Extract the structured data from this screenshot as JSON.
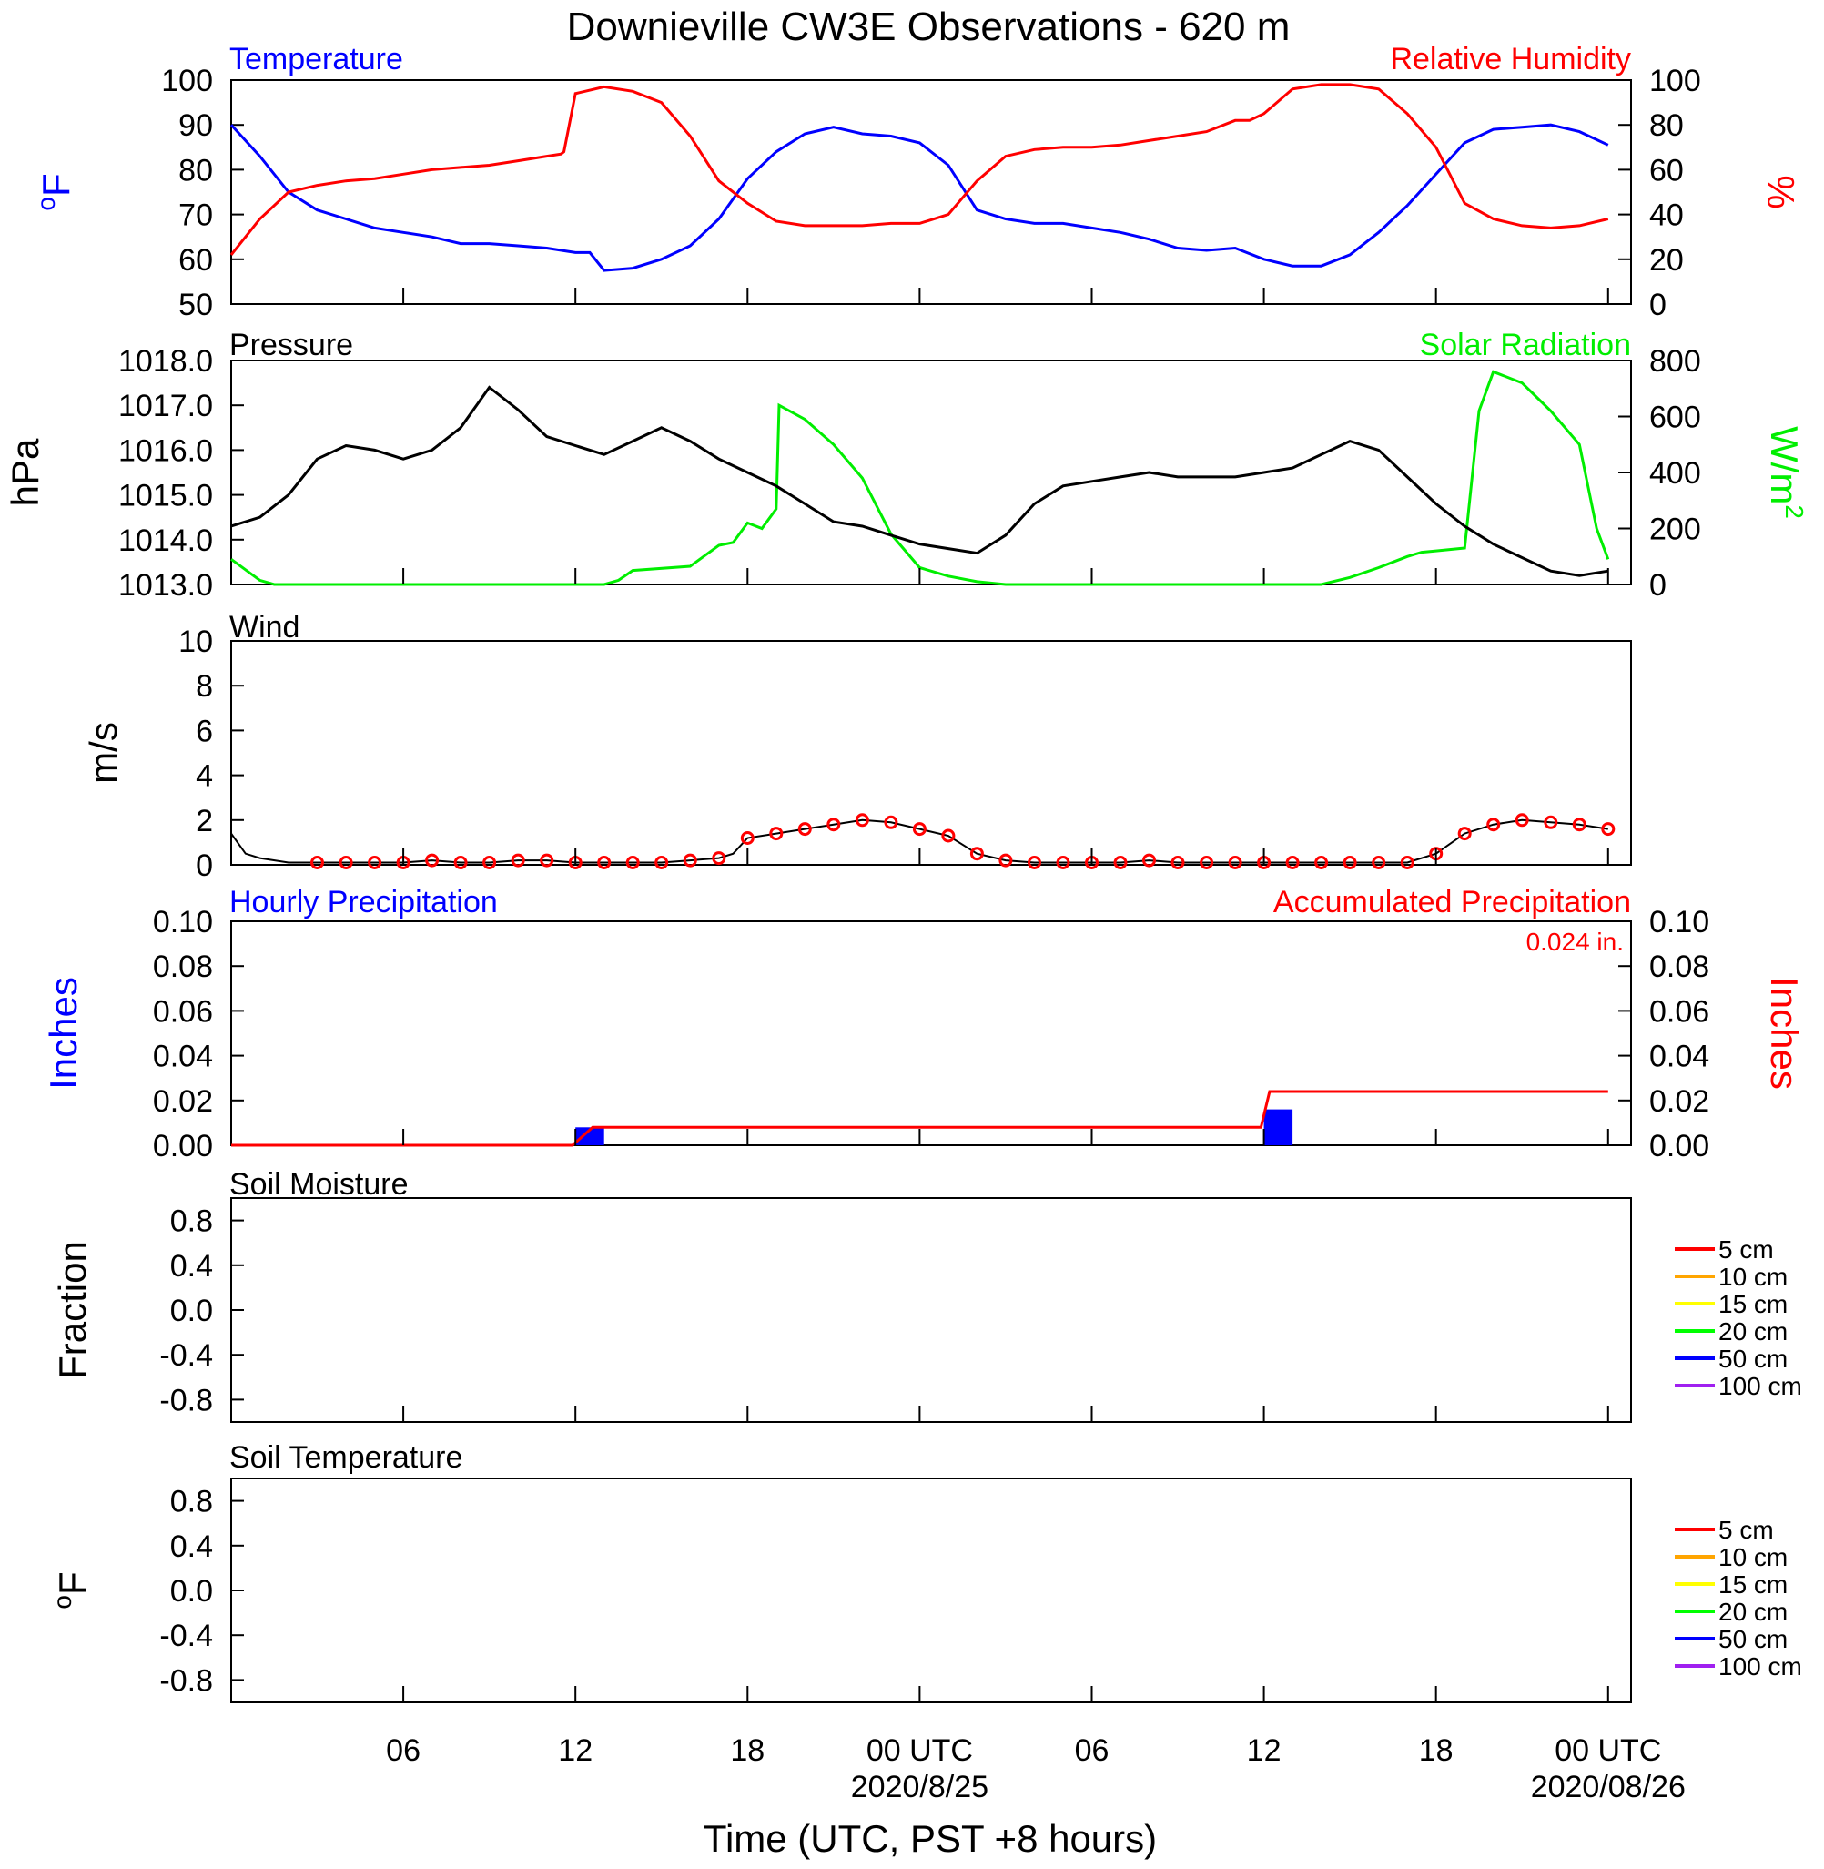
{
  "title": "Downieville CW3E Observations - 620 m",
  "x_axis": {
    "label": "Time (UTC, PST +8 hours)",
    "ticks": [
      {
        "hour": 6,
        "label": "06",
        "sub": ""
      },
      {
        "hour": 12,
        "label": "12",
        "sub": ""
      },
      {
        "hour": 18,
        "label": "18",
        "sub": ""
      },
      {
        "hour": 24,
        "label": "00 UTC",
        "sub": "2020/8/25"
      },
      {
        "hour": 30,
        "label": "06",
        "sub": ""
      },
      {
        "hour": 36,
        "label": "12",
        "sub": ""
      },
      {
        "hour": 42,
        "label": "18",
        "sub": ""
      },
      {
        "hour": 48,
        "label": "00 UTC",
        "sub": "2020/08/26"
      }
    ]
  },
  "panels": {
    "temp_rh": {
      "left_title": "Temperature",
      "right_title": "Relative Humidity",
      "left_unit": "oF",
      "right_unit": "%",
      "left_ticks": [
        "50",
        "60",
        "70",
        "80",
        "90",
        "100"
      ],
      "right_ticks": [
        "0",
        "20",
        "40",
        "60",
        "80",
        "100"
      ]
    },
    "pressure_solar": {
      "left_title": "Pressure",
      "right_title": "Solar Radiation",
      "left_unit": "hPa",
      "right_unit": "W/m2",
      "left_ticks": [
        "1013.0",
        "1014.0",
        "1015.0",
        "1016.0",
        "1017.0",
        "1018.0"
      ],
      "right_ticks": [
        "0",
        "200",
        "400",
        "600",
        "800"
      ]
    },
    "wind": {
      "left_title": "Wind",
      "left_unit": "m/s",
      "left_ticks": [
        "0",
        "2",
        "4",
        "6",
        "8",
        "10"
      ]
    },
    "precip": {
      "left_title": "Hourly Precipitation",
      "right_title": "Accumulated Precipitation",
      "total_label": "0.024 in.",
      "left_unit": "Inches",
      "right_unit": "Inches",
      "left_ticks": [
        "0.00",
        "0.02",
        "0.04",
        "0.06",
        "0.08",
        "0.10"
      ],
      "right_ticks": [
        "0.00",
        "0.02",
        "0.04",
        "0.06",
        "0.08",
        "0.10"
      ]
    },
    "soil_moisture": {
      "left_title": "Soil Moisture",
      "left_unit": "Fraction",
      "left_ticks": [
        "-0.8",
        "-0.4",
        "0.0",
        "0.4",
        "0.8"
      ],
      "legend": [
        "5 cm",
        "10 cm",
        "15 cm",
        "20 cm",
        "50 cm",
        "100 cm"
      ]
    },
    "soil_temp": {
      "left_title": "Soil Temperature",
      "left_unit": "oF",
      "left_ticks": [
        "-0.8",
        "-0.4",
        "0.0",
        "0.4",
        "0.8"
      ],
      "legend": [
        "5 cm",
        "10 cm",
        "15 cm",
        "20 cm",
        "50 cm",
        "100 cm"
      ]
    }
  },
  "colors": {
    "temperature": "#0000ff",
    "humidity": "#ff0000",
    "pressure": "#000000",
    "solar": "#00ee00",
    "wind": "#000000",
    "wind_marker": "#ff0000",
    "hourly_precip": "#0000ff",
    "accum_precip": "#ff0000",
    "legend_lines": [
      "#ff0000",
      "#ffa500",
      "#ffff00",
      "#00ff00",
      "#0000ff",
      "#a020f0"
    ]
  },
  "chart_data": [
    {
      "type": "line",
      "title": "Temperature",
      "ylabel": "oF",
      "ylim": [
        50,
        100
      ],
      "x_unit": "hours since 2020-08-24 00 UTC",
      "x": [
        0,
        1,
        2,
        3,
        4,
        5,
        6,
        7,
        8,
        9,
        10,
        11,
        12,
        12.5,
        13,
        14,
        15,
        16,
        17,
        18,
        19,
        20,
        21,
        22,
        23,
        24,
        25,
        26,
        27,
        28,
        29,
        30,
        31,
        32,
        33,
        34,
        35,
        36,
        37,
        38,
        39,
        40,
        41,
        42,
        43,
        44,
        45,
        46,
        47,
        48
      ],
      "values": [
        90,
        83,
        75,
        71,
        69,
        67,
        66,
        65,
        63.5,
        63.5,
        63,
        62.5,
        61.5,
        61.5,
        57.5,
        58,
        60,
        63,
        69,
        78,
        84,
        88,
        89.5,
        88,
        87.5,
        86,
        81,
        71,
        69,
        68,
        68,
        67,
        66,
        64.5,
        62.5,
        62,
        62.5,
        60,
        58.5,
        58.5,
        61,
        66,
        72,
        79,
        86,
        89,
        89.5,
        90,
        88.5,
        85.5
      ]
    },
    {
      "type": "line",
      "title": "Relative Humidity",
      "ylabel": "%",
      "ylim": [
        0,
        100
      ],
      "x": [
        0,
        1,
        2,
        3,
        4,
        5,
        6,
        7,
        8,
        9,
        10,
        11,
        11.5,
        11.6,
        12,
        13,
        14,
        15,
        16,
        17,
        18,
        19,
        20,
        21,
        22,
        23,
        24,
        25,
        26,
        27,
        28,
        29,
        30,
        31,
        32,
        33,
        34,
        35,
        35.5,
        36,
        37,
        38,
        39,
        40,
        41,
        42,
        43,
        44,
        45,
        46,
        47,
        48
      ],
      "values": [
        22,
        38,
        50,
        53,
        55,
        56,
        58,
        60,
        61,
        62,
        64,
        66,
        67,
        68,
        94,
        97,
        95,
        90,
        75,
        55,
        45,
        37,
        35,
        35,
        35,
        36,
        36,
        40,
        55,
        66,
        69,
        70,
        70,
        71,
        73,
        75,
        77,
        82,
        82,
        85,
        96,
        98,
        98,
        96,
        85,
        70,
        45,
        38,
        35,
        34,
        35,
        38
      ]
    },
    {
      "type": "line",
      "title": "Pressure",
      "ylabel": "hPa",
      "ylim": [
        1013.0,
        1018.0
      ],
      "x": [
        0,
        1,
        2,
        3,
        4,
        5,
        6,
        7,
        8,
        9,
        10,
        11,
        12,
        13,
        14,
        15,
        16,
        17,
        18,
        19,
        20,
        21,
        22,
        23,
        24,
        25,
        26,
        27,
        28,
        29,
        30,
        31,
        32,
        33,
        34,
        35,
        36,
        37,
        38,
        39,
        40,
        41,
        42,
        43,
        44,
        45,
        46,
        47,
        48
      ],
      "values": [
        1014.3,
        1014.5,
        1015.0,
        1015.8,
        1016.1,
        1016.0,
        1015.8,
        1016.0,
        1016.5,
        1017.4,
        1016.9,
        1016.3,
        1016.1,
        1015.9,
        1016.2,
        1016.5,
        1016.2,
        1015.8,
        1015.5,
        1015.2,
        1014.8,
        1014.4,
        1014.3,
        1014.1,
        1013.9,
        1013.8,
        1013.7,
        1014.1,
        1014.8,
        1015.2,
        1015.3,
        1015.4,
        1015.5,
        1015.4,
        1015.4,
        1015.4,
        1015.5,
        1015.6,
        1015.9,
        1016.2,
        1016.0,
        1015.4,
        1014.8,
        1014.3,
        1013.9,
        1013.6,
        1013.3,
        1013.2,
        1013.3
      ]
    },
    {
      "type": "line",
      "title": "Solar Radiation",
      "ylabel": "W/m2",
      "ylim": [
        0,
        800
      ],
      "x": [
        0,
        1,
        1.5,
        13,
        13.5,
        14,
        16,
        17,
        17.5,
        18,
        18.5,
        19,
        19.1,
        20,
        21,
        22,
        23,
        24,
        25,
        26,
        27,
        38,
        39,
        40,
        41,
        41.5,
        42,
        43,
        43.5,
        44,
        45,
        45.5,
        46,
        47,
        47.6,
        48
      ],
      "values": [
        90,
        15,
        0,
        0,
        15,
        50,
        65,
        140,
        150,
        220,
        200,
        270,
        640,
        590,
        500,
        380,
        180,
        60,
        30,
        10,
        0,
        0,
        25,
        60,
        100,
        115,
        120,
        130,
        620,
        760,
        720,
        670,
        620,
        500,
        200,
        90
      ]
    },
    {
      "type": "line",
      "title": "Wind",
      "ylabel": "m/s",
      "ylim": [
        0,
        10
      ],
      "x": [
        0,
        0.5,
        1,
        2,
        3,
        4,
        5,
        6,
        7,
        8,
        9,
        10,
        11,
        12,
        13,
        14,
        15,
        16,
        17,
        17.5,
        18,
        19,
        20,
        21,
        22,
        23,
        24,
        25,
        26,
        27,
        28,
        29,
        30,
        31,
        32,
        33,
        34,
        35,
        36,
        37,
        38,
        39,
        40,
        41,
        42,
        43,
        44,
        45,
        46,
        47,
        48
      ],
      "values": [
        1.4,
        0.5,
        0.3,
        0.1,
        0.1,
        0.1,
        0.1,
        0.1,
        0.2,
        0.1,
        0.1,
        0.2,
        0.2,
        0.1,
        0.1,
        0.1,
        0.1,
        0.2,
        0.3,
        0.5,
        1.2,
        1.4,
        1.6,
        1.8,
        2.0,
        1.9,
        1.6,
        1.3,
        0.5,
        0.2,
        0.1,
        0.1,
        0.1,
        0.1,
        0.2,
        0.1,
        0.1,
        0.1,
        0.1,
        0.1,
        0.1,
        0.1,
        0.1,
        0.1,
        0.5,
        1.4,
        1.8,
        2.0,
        1.9,
        1.8,
        1.6
      ]
    },
    {
      "type": "bar",
      "title": "Hourly Precipitation",
      "ylabel": "Inches",
      "ylim": [
        0,
        0.1
      ],
      "x": [
        12,
        36
      ],
      "values": [
        0.008,
        0.016
      ]
    },
    {
      "type": "line",
      "title": "Accumulated Precipitation",
      "ylabel": "Inches",
      "ylim": [
        0,
        0.1
      ],
      "x": [
        0,
        11.9,
        12.6,
        35.9,
        36.2,
        48
      ],
      "values": [
        0,
        0,
        0.008,
        0.008,
        0.024,
        0.024
      ]
    },
    {
      "type": "line",
      "title": "Soil Moisture",
      "ylabel": "Fraction",
      "ylim": [
        -1.0,
        1.0
      ],
      "series": []
    },
    {
      "type": "line",
      "title": "Soil Temperature",
      "ylabel": "oF",
      "ylim": [
        -1.0,
        1.0
      ],
      "series": []
    }
  ]
}
